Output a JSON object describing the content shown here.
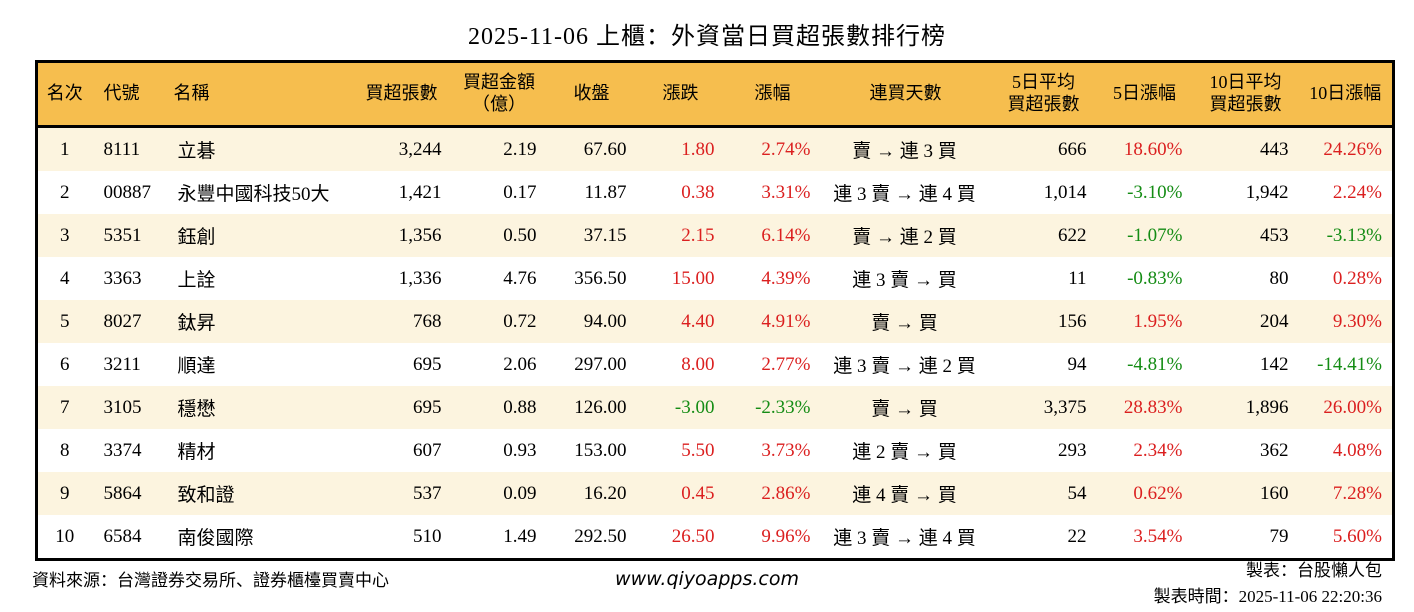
{
  "chart_data": {
    "type": "table",
    "title": "2025-11-06 上櫃：外資當日買超張數排行榜",
    "columns": [
      {
        "key": "rank",
        "label": "名次"
      },
      {
        "key": "code",
        "label": "代號"
      },
      {
        "key": "name",
        "label": "名稱"
      },
      {
        "key": "vol",
        "label": "買超張數"
      },
      {
        "key": "amt",
        "label": "買超金額\n（億）"
      },
      {
        "key": "close",
        "label": "收盤"
      },
      {
        "key": "chg",
        "label": "漲跌"
      },
      {
        "key": "chg_pct",
        "label": "漲幅"
      },
      {
        "key": "streak",
        "label": "連買天數"
      },
      {
        "key": "avg5",
        "label": "5日平均\n買超張數"
      },
      {
        "key": "pct5",
        "label": "5日漲幅"
      },
      {
        "key": "avg10",
        "label": "10日平均\n買超張數"
      },
      {
        "key": "pct10",
        "label": "10日漲幅"
      }
    ],
    "signed_color_columns": [
      "chg",
      "chg_pct",
      "pct5",
      "pct10"
    ],
    "rows": [
      {
        "rank": "1",
        "code": "8111",
        "name": "立碁",
        "vol": "3,244",
        "amt": "2.19",
        "close": "67.60",
        "chg": "1.80",
        "chg_pct": "2.74%",
        "streak": "賣 → 連 3 買",
        "avg5": "666",
        "pct5": "18.60%",
        "avg10": "443",
        "pct10": "24.26%"
      },
      {
        "rank": "2",
        "code": "00887",
        "name": "永豐中國科技50大",
        "vol": "1,421",
        "amt": "0.17",
        "close": "11.87",
        "chg": "0.38",
        "chg_pct": "3.31%",
        "streak": "連 3 賣 → 連 4 買",
        "avg5": "1,014",
        "pct5": "-3.10%",
        "avg10": "1,942",
        "pct10": "2.24%"
      },
      {
        "rank": "3",
        "code": "5351",
        "name": "鈺創",
        "vol": "1,356",
        "amt": "0.50",
        "close": "37.15",
        "chg": "2.15",
        "chg_pct": "6.14%",
        "streak": "賣 → 連 2 買",
        "avg5": "622",
        "pct5": "-1.07%",
        "avg10": "453",
        "pct10": "-3.13%"
      },
      {
        "rank": "4",
        "code": "3363",
        "name": "上詮",
        "vol": "1,336",
        "amt": "4.76",
        "close": "356.50",
        "chg": "15.00",
        "chg_pct": "4.39%",
        "streak": "連 3 賣 → 買",
        "avg5": "11",
        "pct5": "-0.83%",
        "avg10": "80",
        "pct10": "0.28%"
      },
      {
        "rank": "5",
        "code": "8027",
        "name": "鈦昇",
        "vol": "768",
        "amt": "0.72",
        "close": "94.00",
        "chg": "4.40",
        "chg_pct": "4.91%",
        "streak": "賣 → 買",
        "avg5": "156",
        "pct5": "1.95%",
        "avg10": "204",
        "pct10": "9.30%"
      },
      {
        "rank": "6",
        "code": "3211",
        "name": "順達",
        "vol": "695",
        "amt": "2.06",
        "close": "297.00",
        "chg": "8.00",
        "chg_pct": "2.77%",
        "streak": "連 3 賣 → 連 2 買",
        "avg5": "94",
        "pct5": "-4.81%",
        "avg10": "142",
        "pct10": "-14.41%"
      },
      {
        "rank": "7",
        "code": "3105",
        "name": "穩懋",
        "vol": "695",
        "amt": "0.88",
        "close": "126.00",
        "chg": "-3.00",
        "chg_pct": "-2.33%",
        "streak": "賣 → 買",
        "avg5": "3,375",
        "pct5": "28.83%",
        "avg10": "1,896",
        "pct10": "26.00%"
      },
      {
        "rank": "8",
        "code": "3374",
        "name": "精材",
        "vol": "607",
        "amt": "0.93",
        "close": "153.00",
        "chg": "5.50",
        "chg_pct": "3.73%",
        "streak": "連 2 賣 → 買",
        "avg5": "293",
        "pct5": "2.34%",
        "avg10": "362",
        "pct10": "4.08%"
      },
      {
        "rank": "9",
        "code": "5864",
        "name": "致和證",
        "vol": "537",
        "amt": "0.09",
        "close": "16.20",
        "chg": "0.45",
        "chg_pct": "2.86%",
        "streak": "連 4 賣 → 買",
        "avg5": "54",
        "pct5": "0.62%",
        "avg10": "160",
        "pct10": "7.28%"
      },
      {
        "rank": "10",
        "code": "6584",
        "name": "南俊國際",
        "vol": "510",
        "amt": "1.49",
        "close": "292.50",
        "chg": "26.50",
        "chg_pct": "9.96%",
        "streak": "連 3 賣 → 連 4 買",
        "avg5": "22",
        "pct5": "3.54%",
        "avg10": "79",
        "pct10": "5.60%"
      }
    ]
  },
  "footer": {
    "source": "資料來源：台灣證券交易所、證券櫃檯買賣中心",
    "website": "www.qiyoapps.com",
    "maker": "製表：台股懶人包",
    "made_at": "製表時間：2025-11-06 22:20:36"
  },
  "colors": {
    "up": "#DB1F1F",
    "down": "#148C14",
    "header_bg": "#F6BE4E",
    "row_stripe": "#FCF4DF",
    "border": "#000000"
  }
}
